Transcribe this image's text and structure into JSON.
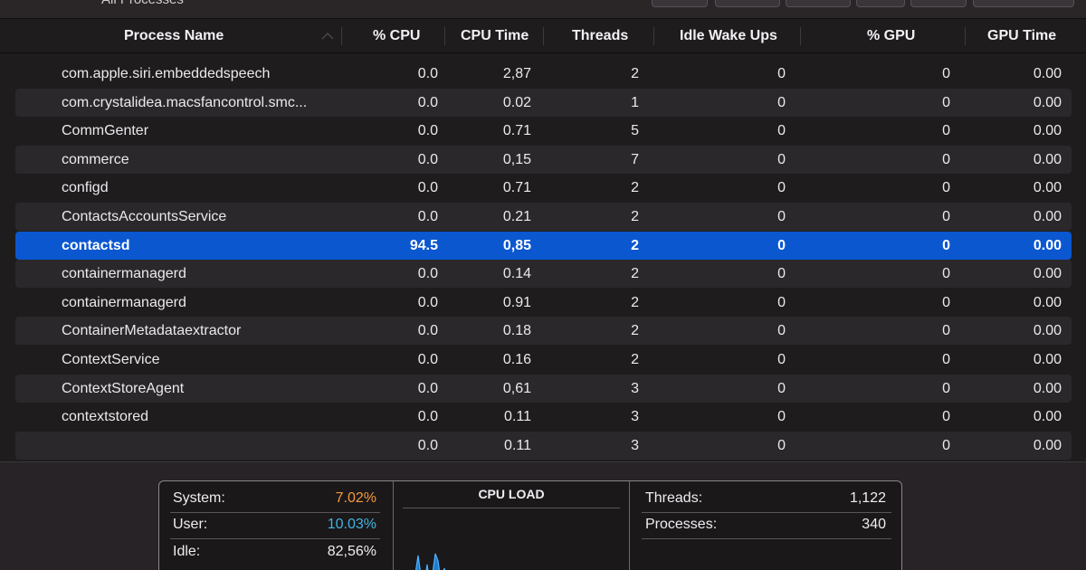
{
  "toolbar": {
    "view_label": "All Processes"
  },
  "columns": {
    "process_name": "Process Name",
    "cpu": "% CPU",
    "cpu_time": "CPU Time",
    "threads": "Threads",
    "idle_wake_ups": "Idle Wake Ups",
    "gpu": "% GPU",
    "gpu_time": "GPU Time"
  },
  "rows": [
    {
      "name": "com.apple.siri.embeddedspeech",
      "cpu": "0.0",
      "cpu_time": "2,87",
      "threads": "2",
      "idle": "0",
      "gpu": "0",
      "gpu_time": "0.00"
    },
    {
      "name": "com.crystalidea.macsfancontrol.smc...",
      "cpu": "0.0",
      "cpu_time": "0.02",
      "threads": "1",
      "idle": "0",
      "gpu": "0",
      "gpu_time": "0.00"
    },
    {
      "name": "CommGenter",
      "cpu": "0.0",
      "cpu_time": "0.71",
      "threads": "5",
      "idle": "0",
      "gpu": "0",
      "gpu_time": "0.00"
    },
    {
      "name": "commerce",
      "cpu": "0.0",
      "cpu_time": "0,15",
      "threads": "7",
      "idle": "0",
      "gpu": "0",
      "gpu_time": "0.00"
    },
    {
      "name": "configd",
      "cpu": "0.0",
      "cpu_time": "0.71",
      "threads": "2",
      "idle": "0",
      "gpu": "0",
      "gpu_time": "0.00"
    },
    {
      "name": "ContactsAccountsService",
      "cpu": "0.0",
      "cpu_time": "0.21",
      "threads": "2",
      "idle": "0",
      "gpu": "0",
      "gpu_time": "0.00"
    },
    {
      "name": "contactsd",
      "cpu": "94.5",
      "cpu_time": "0,85",
      "threads": "2",
      "idle": "0",
      "gpu": "0",
      "gpu_time": "0.00"
    },
    {
      "name": "containermanagerd",
      "cpu": "0.0",
      "cpu_time": "0.14",
      "threads": "2",
      "idle": "0",
      "gpu": "0",
      "gpu_time": "0.00"
    },
    {
      "name": "containermanagerd",
      "cpu": "0.0",
      "cpu_time": "0.91",
      "threads": "2",
      "idle": "0",
      "gpu": "0",
      "gpu_time": "0.00"
    },
    {
      "name": "ContainerMetadataextractor",
      "cpu": "0.0",
      "cpu_time": "0.18",
      "threads": "2",
      "idle": "0",
      "gpu": "0",
      "gpu_time": "0.00"
    },
    {
      "name": "ContextService",
      "cpu": "0.0",
      "cpu_time": "0.16",
      "threads": "2",
      "idle": "0",
      "gpu": "0",
      "gpu_time": "0.00"
    },
    {
      "name": "ContextStoreAgent",
      "cpu": "0.0",
      "cpu_time": "0,61",
      "threads": "3",
      "idle": "0",
      "gpu": "0",
      "gpu_time": "0.00"
    },
    {
      "name": "contextstored",
      "cpu": "0.0",
      "cpu_time": "0.11",
      "threads": "3",
      "idle": "0",
      "gpu": "0",
      "gpu_time": "0.00"
    },
    {
      "name": "",
      "cpu": "0.0",
      "cpu_time": "0.11",
      "threads": "3",
      "idle": "0",
      "gpu": "0",
      "gpu_time": "0.00"
    }
  ],
  "selected_row": 6,
  "stats": {
    "system_label": "System:",
    "system_value": "7.02%",
    "user_label": "User:",
    "user_value": "10.03%",
    "idle_label": "Idle:",
    "idle_value": "82,56%",
    "cpu_load_title": "CPU LOAD",
    "threads_label": "Threads:",
    "threads_value": "1,122",
    "processes_label": "Processes:",
    "processes_value": "340"
  },
  "colors": {
    "system": "#f59a3a",
    "user": "#3fb6e0",
    "selection": "#0b57d0",
    "graph": "#1f8ef0"
  }
}
